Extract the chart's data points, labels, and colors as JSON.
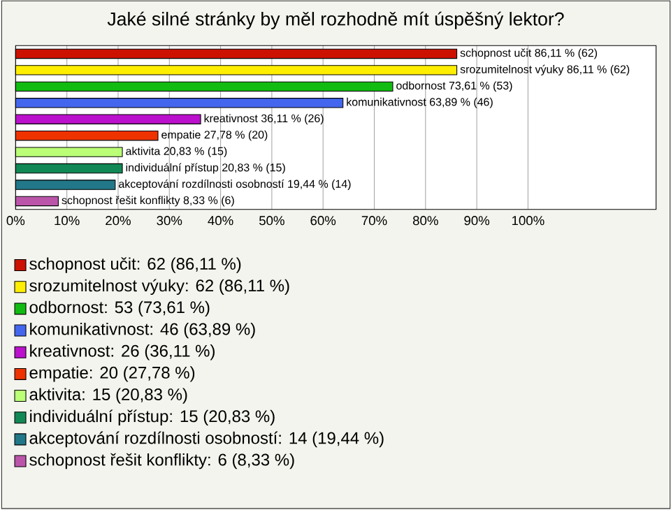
{
  "chart_data": {
    "type": "bar",
    "orientation": "horizontal",
    "title": "Jaké silné stránky by měl rozhodně mít úspěšný lektor?",
    "categories": [
      null,
      null,
      null,
      null,
      null,
      null,
      null,
      null,
      null,
      null
    ],
    "values": [
      86.11,
      86.11,
      73.61,
      63.89,
      36.11,
      27.78,
      20.83,
      20.83,
      19.44,
      8.33
    ],
    "colors": [
      "#cc1100",
      "#ffee00",
      "#11bb11",
      "#4466ee",
      "#bb11cc",
      "#ee3300",
      "#bbff77",
      "#118855",
      "#227788",
      "#bb55aa"
    ],
    "value_labels": [
      "schopnost učit 86,11 % (62)",
      "srozumitelnost výuky 86,11 % (62)",
      "odbornost 73,61 % (53)",
      "komunikativnost 63,89 % (46)",
      "kreativnost 36,11 % (26)",
      "empatie 27,78 % (20)",
      "aktivita 20,83 % (15)",
      "individuální přístup 20,83 % (15)",
      "akceptování rozdílnosti osobností 19,44 % (14)",
      "schopnost řešit konflikty 8,33 % (6)"
    ],
    "xlim": [
      0,
      125
    ],
    "xticks": [
      {
        "value": 0,
        "label": "0%"
      },
      {
        "value": 10,
        "label": "10%"
      },
      {
        "value": 20,
        "label": "20%"
      },
      {
        "value": 30,
        "label": "30%"
      },
      {
        "value": 40,
        "label": "40%"
      },
      {
        "value": 50,
        "label": "50%"
      },
      {
        "value": 60,
        "label": "60%"
      },
      {
        "value": 70,
        "label": "70%"
      },
      {
        "value": 80,
        "label": "80%"
      },
      {
        "value": 90,
        "label": "90%"
      },
      {
        "value": 100,
        "label": "100%"
      }
    ],
    "grid": "x",
    "annotations": [
      "schopnost učit: 62 (86,11 %)",
      "srozumitelnost výuky: 62 (86,11 %)",
      "odbornost: 53 (73,61 %)",
      "komunikativnost: 46 (63,89 %)",
      "kreativnost: 26 (36,11 %)",
      "empatie: 20 (27,78 %)",
      "aktivita: 15 (20,83 %)",
      "individuální přístup: 15 (20,83 %)",
      "akceptování rozdílnosti osobností: 14 (19,44 %)",
      "schopnost řešit konflikty: 6 (8,33 %)"
    ]
  }
}
